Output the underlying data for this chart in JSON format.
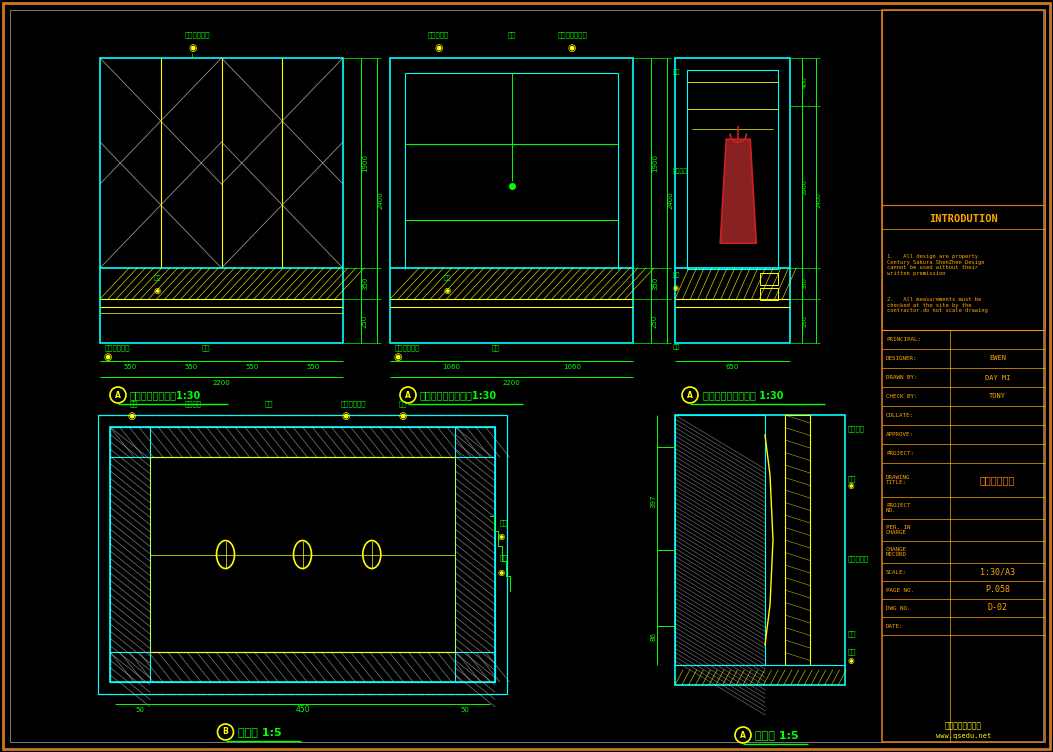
{
  "bg_color": "#000000",
  "outer_border_color": "#cc7722",
  "inner_border_color": "#cccccc",
  "cad_line_color": "#00ffff",
  "green_line_color": "#00ff00",
  "yellow_line_color": "#ffff00",
  "white_line_color": "#cccccc",
  "red_color": "#cc2222",
  "orange_text_color": "#ffa500",
  "label_color": "#00ff00",
  "intro_title": "INTRODUTION",
  "intro_text1": "1.   All design are property\nCentury Sakura ShenZhen Design\ncannot be used without their\nwritten premission",
  "intro_text2": "2.   All measurements must be\nchecked at the site by the\ncontractor.do not scale drawing",
  "fields": [
    [
      "PRINCIPAL:",
      ""
    ],
    [
      "DESIGNER:",
      "EWEN"
    ],
    [
      "DRAWN BY:",
      "DAY MI"
    ],
    [
      "CHECK BY:",
      "TONY"
    ],
    [
      "COLLATE:",
      ""
    ],
    [
      "APPROVE:",
      ""
    ],
    [
      "PROJECT:",
      ""
    ]
  ],
  "drawing_title_label": "DRAWING\nTITLE:",
  "drawing_title_value": "主人房大样图",
  "project_no_label": "PROJECT\nNO.",
  "per_in_charge_label": "PER. IN\nCHARGE",
  "change_record_label": "CHANGE\nRECORD",
  "scale_label": "SCALE:",
  "scale_value": "1:30/A3",
  "page_no_label": "PAGE NO.",
  "page_no_value": "P.058",
  "dwg_no_label": "DWG NO.",
  "dwg_no_value": "D-02",
  "date_label": "DATE:",
  "watermark1": "齐生设计职业学校",
  "watermark2": "www.qsedu.net",
  "chart1_title": "主人房衣柜立面图",
  "chart2_title": "主人房衣柜内立面图",
  "chart3_title": "主人房衣柜侧剪面图 1:30",
  "chart4_title": "大样图 1:5",
  "chart5_title": "剪面图 1:5"
}
